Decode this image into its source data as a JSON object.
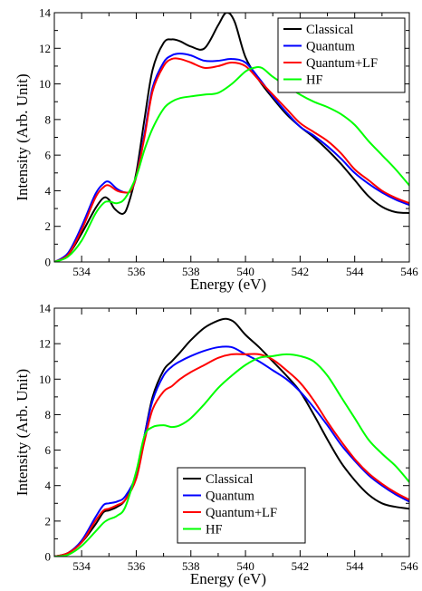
{
  "chart_data": [
    {
      "type": "line",
      "xlabel": "Energy (eV)",
      "ylabel": "Intensity (Arb. Unit)",
      "xlim": [
        533,
        546
      ],
      "ylim": [
        0,
        14
      ],
      "xticks": [
        534,
        536,
        538,
        540,
        542,
        544,
        546
      ],
      "yticks": [
        0,
        2,
        4,
        6,
        8,
        10,
        12,
        14
      ],
      "legend_position": "top-right",
      "series": [
        {
          "name": "Classical",
          "color": "#000000",
          "x": [
            533,
            533.5,
            534,
            534.5,
            534.8,
            535,
            535.2,
            535.5,
            535.7,
            536,
            536.3,
            536.6,
            537,
            537.3,
            537.6,
            538,
            538.5,
            539,
            539.3,
            539.6,
            540,
            540.5,
            541,
            541.5,
            542,
            542.5,
            543,
            543.5,
            544,
            544.5,
            545,
            545.5,
            546
          ],
          "y": [
            0,
            0.4,
            1.6,
            3.0,
            3.6,
            3.5,
            3.0,
            2.7,
            3.2,
            5.0,
            8.0,
            10.8,
            12.3,
            12.5,
            12.4,
            12.1,
            12.0,
            13.3,
            14.0,
            13.5,
            11.5,
            10.2,
            9.2,
            8.3,
            7.6,
            7.0,
            6.3,
            5.5,
            4.6,
            3.7,
            3.1,
            2.8,
            2.75
          ]
        },
        {
          "name": "Quantum",
          "color": "#0000ff",
          "x": [
            533,
            533.5,
            534,
            534.5,
            534.8,
            535,
            535.3,
            535.6,
            535.8,
            536,
            536.3,
            536.6,
            537,
            537.3,
            537.6,
            538,
            538.5,
            539,
            539.5,
            540,
            540.5,
            541,
            541.5,
            542,
            542.5,
            543,
            543.5,
            544,
            544.5,
            545,
            545.5,
            546
          ],
          "y": [
            0,
            0.5,
            2.0,
            3.8,
            4.4,
            4.5,
            4.1,
            3.9,
            4.0,
            4.8,
            7.2,
            9.8,
            11.2,
            11.6,
            11.7,
            11.6,
            11.3,
            11.3,
            11.4,
            11.2,
            10.3,
            9.3,
            8.4,
            7.6,
            7.1,
            6.5,
            5.8,
            5.0,
            4.4,
            3.9,
            3.5,
            3.2
          ]
        },
        {
          "name": "Quantum+LF",
          "color": "#ff0000",
          "x": [
            533,
            533.5,
            534,
            534.5,
            534.8,
            535,
            535.3,
            535.6,
            535.8,
            536,
            536.3,
            536.6,
            537,
            537.3,
            537.6,
            538,
            538.5,
            539,
            539.5,
            540,
            540.5,
            541,
            541.5,
            542,
            542.5,
            543,
            543.5,
            544,
            544.5,
            545,
            545.5,
            546
          ],
          "y": [
            0,
            0.4,
            1.8,
            3.6,
            4.2,
            4.3,
            4.0,
            3.9,
            4.0,
            4.8,
            7.0,
            9.6,
            11.0,
            11.4,
            11.4,
            11.2,
            10.9,
            11.0,
            11.2,
            11.0,
            10.2,
            9.4,
            8.6,
            7.8,
            7.3,
            6.8,
            6.1,
            5.2,
            4.6,
            4.0,
            3.6,
            3.3
          ]
        },
        {
          "name": "HF",
          "color": "#00ff00",
          "x": [
            533,
            533.5,
            534,
            534.5,
            534.8,
            535,
            535.3,
            535.6,
            536,
            536.3,
            536.6,
            537,
            537.3,
            537.6,
            538,
            538.5,
            539,
            539.5,
            540,
            540.3,
            540.6,
            541,
            541.5,
            542,
            542.5,
            543,
            543.5,
            544,
            544.5,
            545,
            545.5,
            546
          ],
          "y": [
            0,
            0.3,
            1.2,
            2.7,
            3.3,
            3.4,
            3.3,
            3.6,
            4.8,
            6.3,
            7.5,
            8.6,
            9.0,
            9.2,
            9.3,
            9.4,
            9.5,
            10.0,
            10.7,
            10.9,
            10.9,
            10.4,
            9.9,
            9.4,
            9.0,
            8.7,
            8.3,
            7.7,
            6.8,
            6.0,
            5.2,
            4.3
          ]
        }
      ]
    },
    {
      "type": "line",
      "xlabel": "Energy (eV)",
      "ylabel": "Intensity (Arb. Unit)",
      "xlim": [
        533,
        546
      ],
      "ylim": [
        0,
        14
      ],
      "xticks": [
        534,
        536,
        538,
        540,
        542,
        544,
        546
      ],
      "yticks": [
        0,
        2,
        4,
        6,
        8,
        10,
        12,
        14
      ],
      "legend_position": "bottom-center",
      "series": [
        {
          "name": "Classical",
          "color": "#000000",
          "x": [
            533,
            533.5,
            534,
            534.5,
            534.8,
            535,
            535.3,
            535.6,
            536,
            536.3,
            536.6,
            537,
            537.3,
            537.6,
            538,
            538.5,
            539,
            539.3,
            539.6,
            540,
            540.5,
            541,
            541.5,
            542,
            542.5,
            543,
            543.5,
            544,
            544.5,
            545,
            545.5,
            546
          ],
          "y": [
            0,
            0.2,
            0.8,
            1.8,
            2.5,
            2.6,
            2.8,
            3.2,
            4.5,
            6.8,
            9.0,
            10.5,
            11.0,
            11.5,
            12.2,
            12.9,
            13.3,
            13.4,
            13.2,
            12.5,
            11.8,
            11.0,
            10.2,
            9.3,
            8.0,
            6.6,
            5.3,
            4.3,
            3.5,
            3.0,
            2.8,
            2.7
          ]
        },
        {
          "name": "Quantum",
          "color": "#0000ff",
          "x": [
            533,
            533.5,
            534,
            534.5,
            534.8,
            535,
            535.3,
            535.6,
            536,
            536.3,
            536.6,
            537,
            537.3,
            537.6,
            538,
            538.5,
            539,
            539.5,
            540,
            540.5,
            541,
            541.5,
            542,
            542.5,
            543,
            543.5,
            544,
            544.5,
            545,
            545.5,
            546
          ],
          "y": [
            0,
            0.2,
            0.9,
            2.2,
            2.9,
            3.0,
            3.1,
            3.4,
            4.6,
            6.8,
            8.8,
            10.2,
            10.7,
            11.0,
            11.3,
            11.6,
            11.8,
            11.8,
            11.4,
            11.0,
            10.5,
            10.0,
            9.3,
            8.4,
            7.4,
            6.3,
            5.4,
            4.6,
            4.0,
            3.5,
            3.1
          ]
        },
        {
          "name": "Quantum+LF",
          "color": "#ff0000",
          "x": [
            533,
            533.5,
            534,
            534.5,
            534.8,
            535,
            535.3,
            535.6,
            536,
            536.3,
            536.6,
            537,
            537.3,
            537.6,
            538,
            538.5,
            539,
            539.5,
            540,
            540.5,
            541,
            541.5,
            542,
            542.5,
            543,
            543.5,
            544,
            544.5,
            545,
            545.5,
            546
          ],
          "y": [
            0,
            0.2,
            0.8,
            2.0,
            2.6,
            2.7,
            2.9,
            3.2,
            4.4,
            6.5,
            8.3,
            9.3,
            9.6,
            10.0,
            10.4,
            10.8,
            11.2,
            11.4,
            11.4,
            11.4,
            11.1,
            10.5,
            9.8,
            8.8,
            7.6,
            6.5,
            5.5,
            4.7,
            4.1,
            3.6,
            3.2
          ]
        },
        {
          "name": "HF",
          "color": "#00ff00",
          "x": [
            533,
            533.5,
            534,
            534.5,
            534.8,
            535,
            535.3,
            535.6,
            536,
            536.3,
            536.6,
            537,
            537.3,
            537.6,
            538,
            538.5,
            539,
            539.5,
            540,
            540.5,
            541,
            541.5,
            542,
            542.5,
            543,
            543.5,
            544,
            544.5,
            545,
            545.5,
            546
          ],
          "y": [
            0,
            0.1,
            0.6,
            1.4,
            1.9,
            2.1,
            2.3,
            2.8,
            4.8,
            6.8,
            7.3,
            7.4,
            7.3,
            7.4,
            7.8,
            8.6,
            9.5,
            10.2,
            10.8,
            11.2,
            11.3,
            11.4,
            11.3,
            11.0,
            10.2,
            9.0,
            7.8,
            6.6,
            5.8,
            5.1,
            4.2
          ]
        }
      ]
    }
  ]
}
